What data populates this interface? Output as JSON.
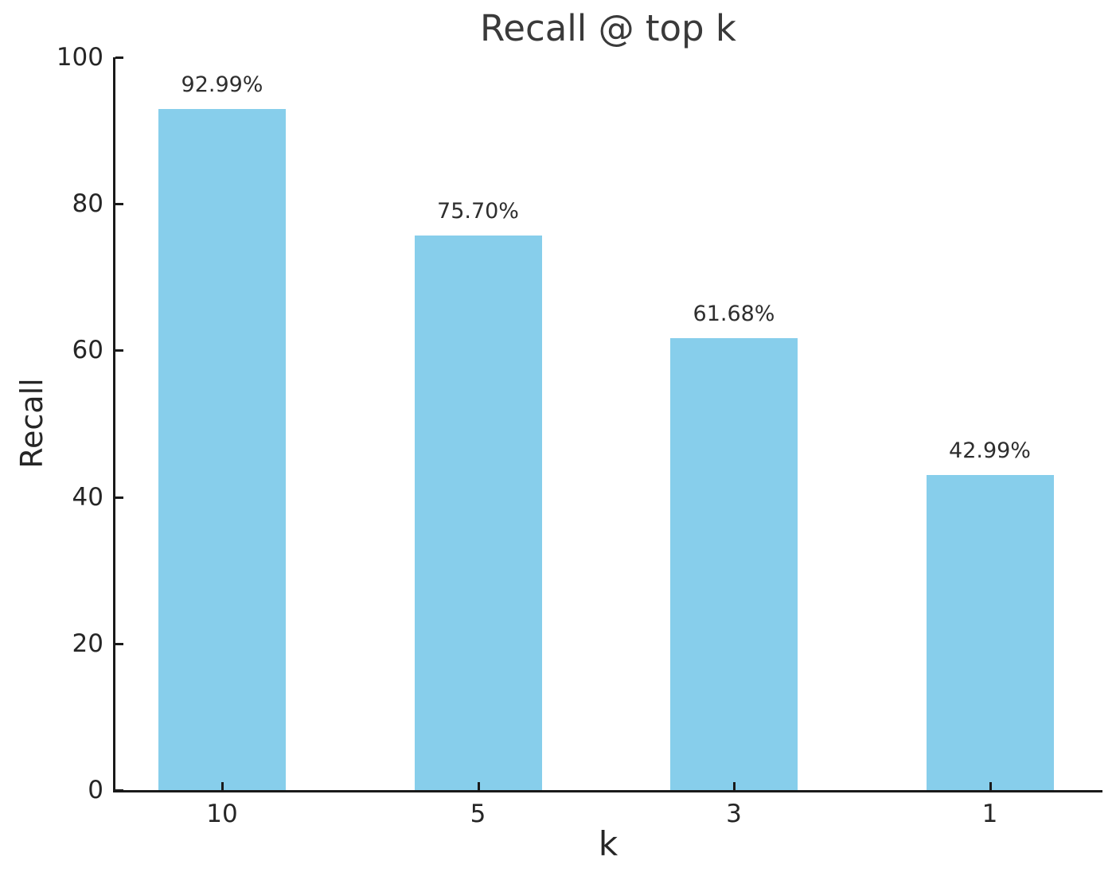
{
  "chart_data": {
    "type": "bar",
    "title": "Recall @ top k",
    "xlabel": "k",
    "ylabel": "Recall",
    "categories": [
      "10",
      "5",
      "3",
      "1"
    ],
    "values": [
      92.99,
      75.7,
      61.68,
      42.99
    ],
    "value_labels": [
      "92.99%",
      "75.70%",
      "61.68%",
      "42.99%"
    ],
    "ylim": [
      0,
      100
    ],
    "yticks": [
      0,
      20,
      40,
      60,
      80,
      100
    ],
    "ytick_labels": [
      "0",
      "20",
      "40",
      "60",
      "80",
      "100"
    ],
    "grid": false,
    "legend": "none",
    "bar_color": "#87CEEB",
    "axis_color": "#1a1a1a",
    "background_color": "#ffffff"
  }
}
